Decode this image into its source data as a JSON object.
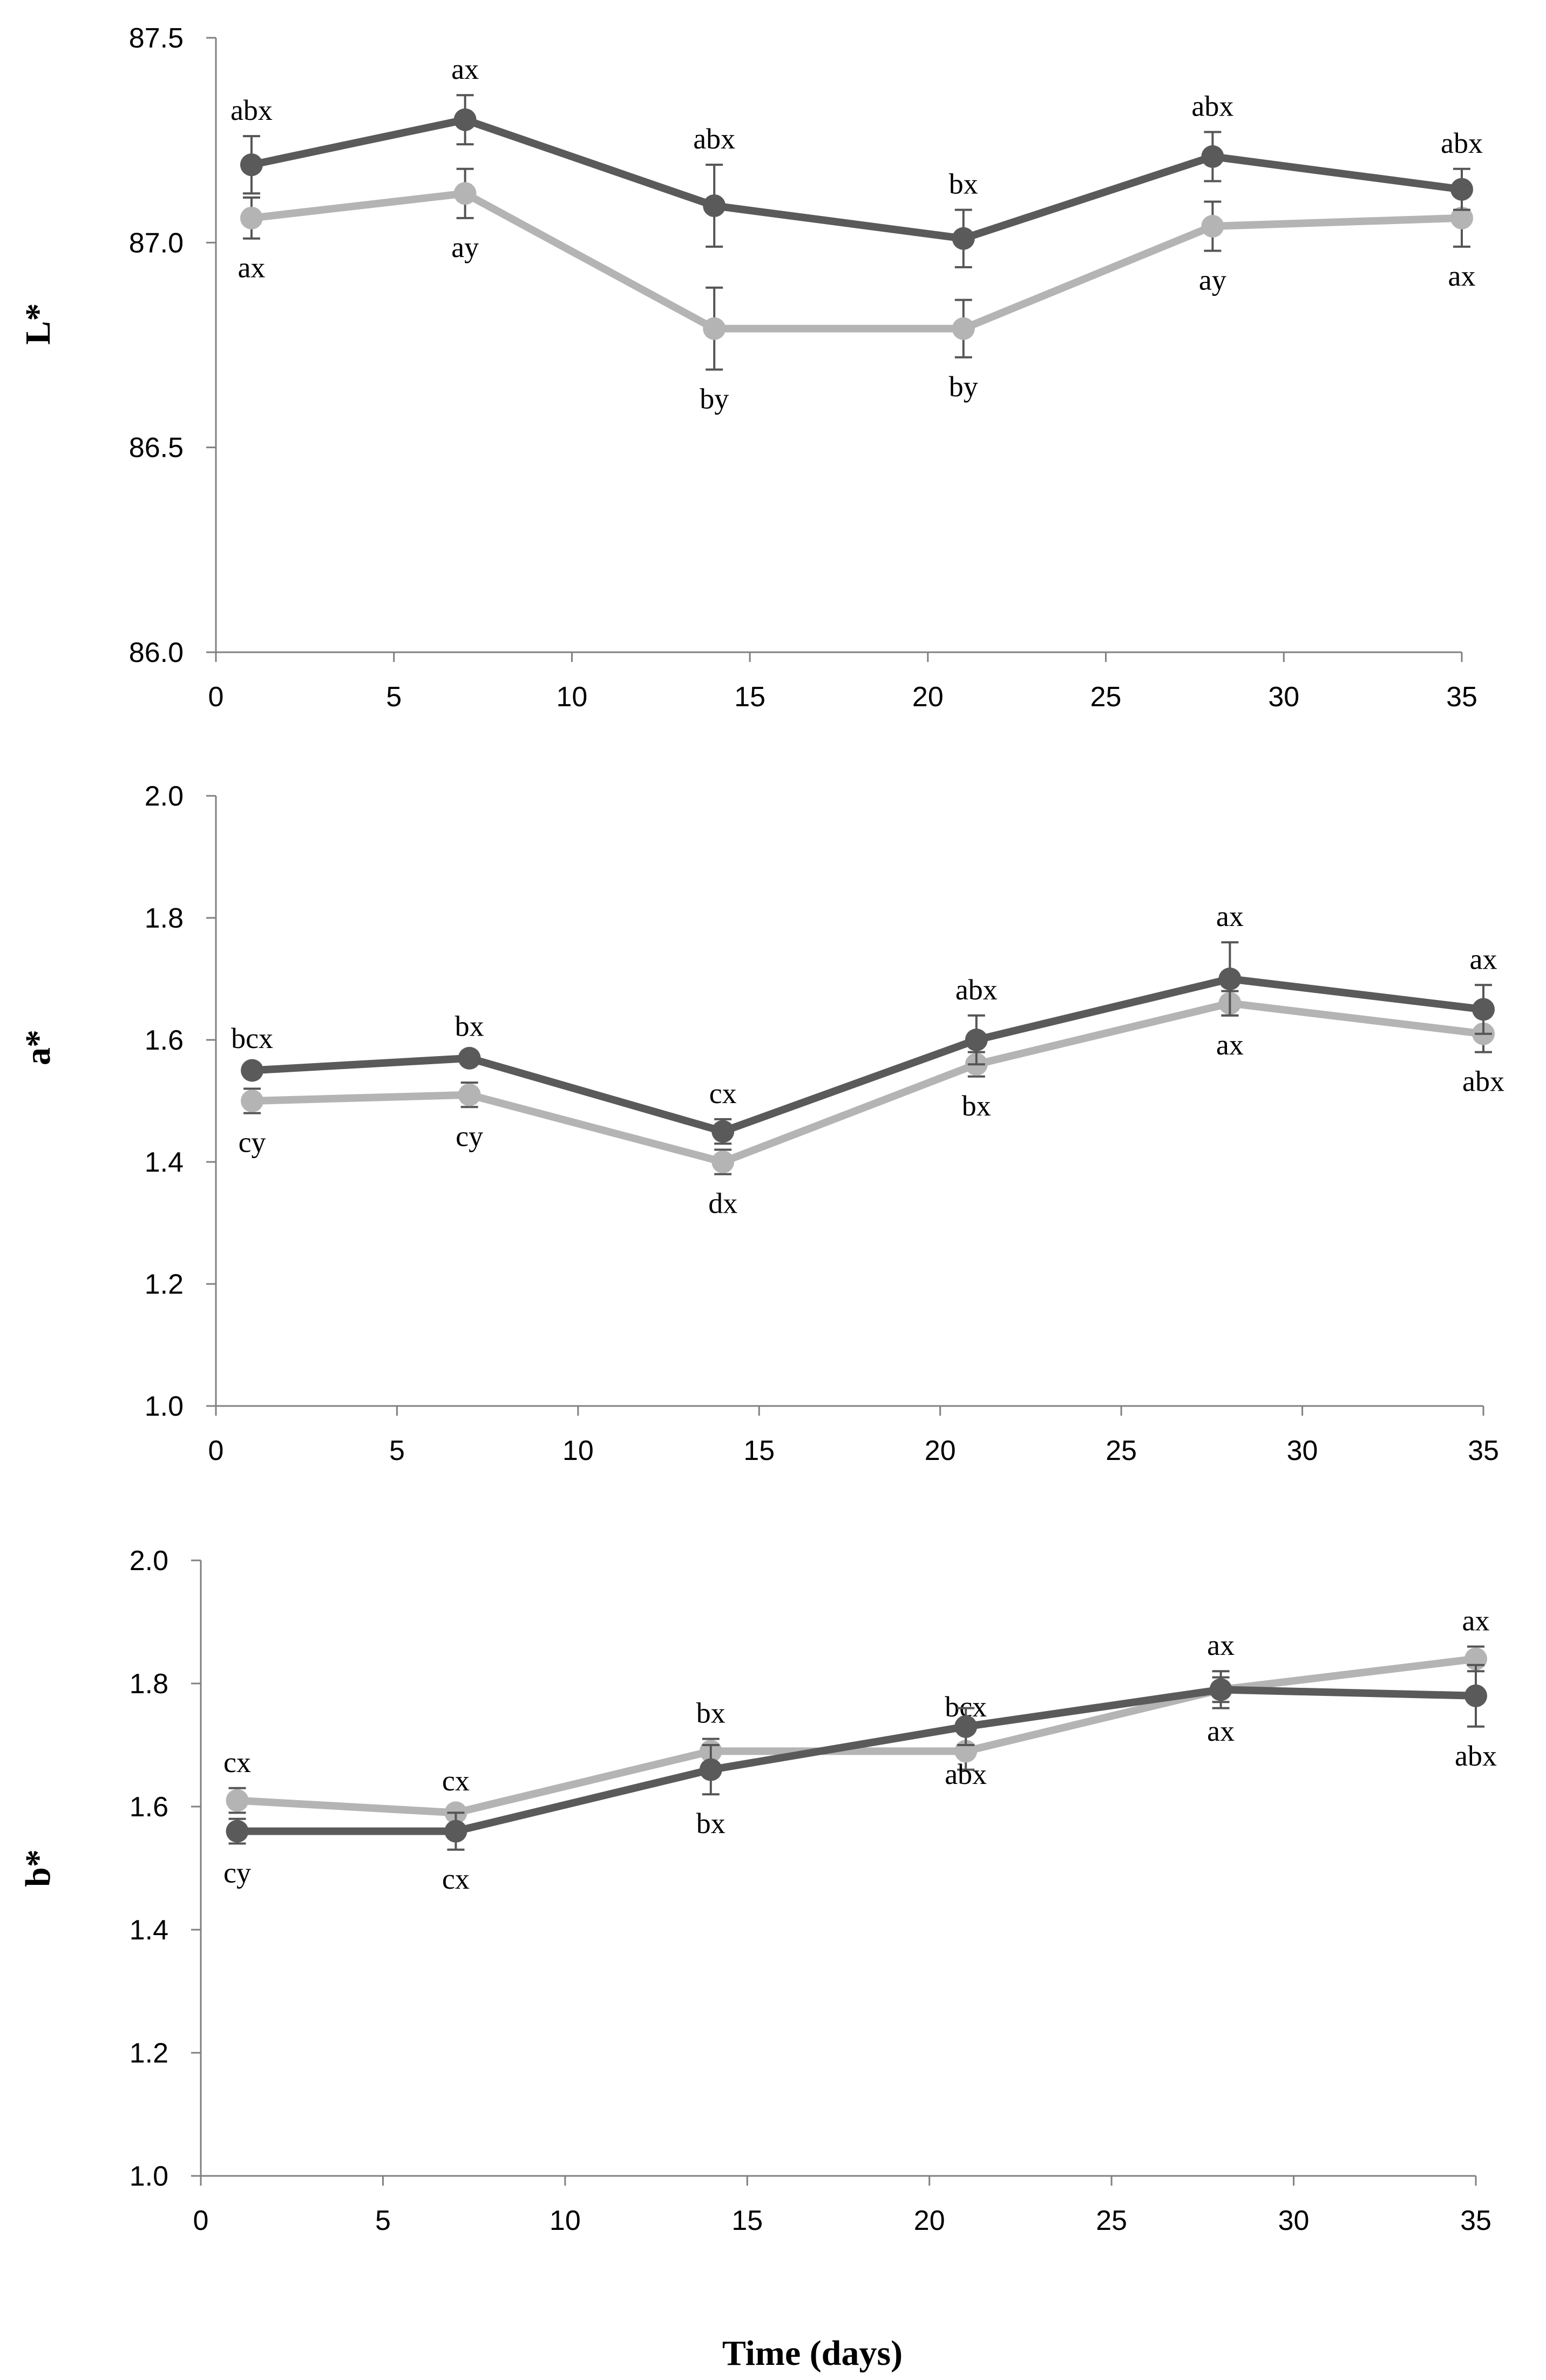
{
  "colors": {
    "dark_series": "#5a5a5a",
    "light_series": "#b4b4b4",
    "axis": "#808080",
    "errorbar": "#555555",
    "background": "#ffffff"
  },
  "xlabel": "Time (days)",
  "chart_data": [
    {
      "type": "line",
      "ylabel": "L*",
      "xlim": [
        0,
        35
      ],
      "ylim": [
        86.0,
        87.5
      ],
      "xticks": [
        "0",
        "5",
        "10",
        "15",
        "20",
        "25",
        "30",
        "35"
      ],
      "yticks": [
        "86.0",
        "86.5",
        "87.0",
        "87.5"
      ],
      "grid": false,
      "x": [
        1,
        7,
        14,
        21,
        28,
        35
      ],
      "series": [
        {
          "color": "#5a5a5a",
          "values": [
            87.19,
            87.3,
            87.09,
            87.01,
            87.21,
            87.13
          ],
          "errors": [
            0.07,
            0.06,
            0.1,
            0.07,
            0.06,
            0.05
          ],
          "labels": [
            "abx",
            "ax",
            "abx",
            "bx",
            "abx",
            "abx"
          ],
          "label_pos": "above"
        },
        {
          "color": "#b4b4b4",
          "values": [
            87.06,
            87.12,
            86.79,
            86.79,
            87.04,
            87.06
          ],
          "errors": [
            0.05,
            0.06,
            0.1,
            0.07,
            0.06,
            0.07
          ],
          "labels": [
            "ax",
            "ay",
            "by",
            "by",
            "ay",
            "ax"
          ],
          "label_pos": "below"
        }
      ]
    },
    {
      "type": "line",
      "ylabel": "a*",
      "xlim": [
        0,
        35
      ],
      "ylim": [
        1.0,
        2.0
      ],
      "xticks": [
        "0",
        "5",
        "10",
        "15",
        "20",
        "25",
        "30",
        "35"
      ],
      "yticks": [
        "1.0",
        "1.2",
        "1.4",
        "1.6",
        "1.8",
        "2.0"
      ],
      "grid": false,
      "x": [
        1,
        7,
        14,
        21,
        28,
        35
      ],
      "series": [
        {
          "color": "#5a5a5a",
          "values": [
            1.55,
            1.57,
            1.45,
            1.6,
            1.7,
            1.65
          ],
          "errors": [
            0.01,
            0.01,
            0.02,
            0.04,
            0.06,
            0.04
          ],
          "labels": [
            "bcx",
            "bx",
            "cx",
            "abx",
            "ax",
            "ax"
          ],
          "label_pos": "above"
        },
        {
          "color": "#b4b4b4",
          "values": [
            1.5,
            1.51,
            1.4,
            1.56,
            1.66,
            1.61
          ],
          "errors": [
            0.02,
            0.02,
            0.02,
            0.02,
            0.02,
            0.03
          ],
          "labels": [
            "cy",
            "cy",
            "dx",
            "bx",
            "ax",
            "abx"
          ],
          "label_pos": "below"
        }
      ]
    },
    {
      "type": "line",
      "ylabel": "b*",
      "xlim": [
        0,
        35
      ],
      "ylim": [
        1.0,
        2.0
      ],
      "xticks": [
        "0",
        "5",
        "10",
        "15",
        "20",
        "25",
        "30",
        "35"
      ],
      "yticks": [
        "1.0",
        "1.2",
        "1.4",
        "1.6",
        "1.8",
        "2.0"
      ],
      "grid": false,
      "x": [
        1,
        7,
        14,
        21,
        28,
        35
      ],
      "series": [
        {
          "color": "#5a5a5a",
          "values": [
            1.56,
            1.56,
            1.66,
            1.73,
            1.79,
            1.78
          ],
          "errors": [
            0.02,
            0.03,
            0.04,
            0.03,
            0.02,
            0.05
          ],
          "labels": [
            "cy",
            "cx",
            "bx",
            "abx",
            "ax",
            "abx"
          ],
          "label_pos": "below"
        },
        {
          "color": "#b4b4b4",
          "values": [
            1.61,
            1.59,
            1.69,
            1.69,
            1.79,
            1.84
          ],
          "errors": [
            0.02,
            0.01,
            0.02,
            0.03,
            0.03,
            0.02
          ],
          "labels": [
            "cx",
            "cx",
            "bx",
            "bcx",
            "ax",
            "ax"
          ],
          "label_pos": "above"
        }
      ]
    }
  ]
}
